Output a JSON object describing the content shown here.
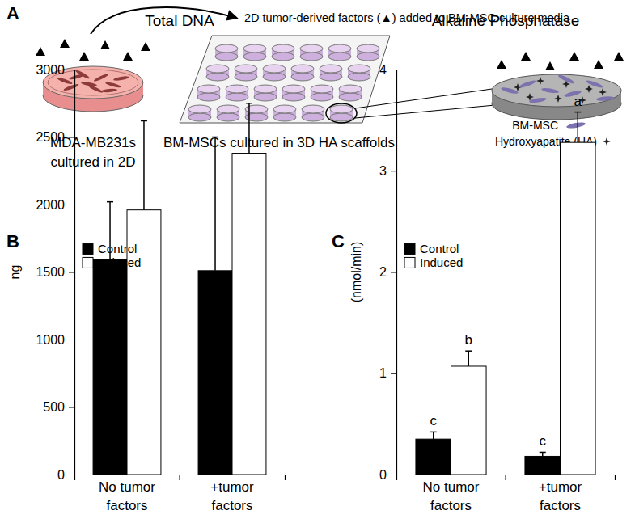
{
  "diagram": {
    "panel_label": "A",
    "arrow_text": "2D tumor-derived factors (▲) added to BM-MSC culture media",
    "left_caption": "MDA-MB231s\ncultured in 2D",
    "center_caption": "BM-MSCs cultured in 3D HA scaffolds",
    "key": [
      "BM-MSC",
      "Hydroxyapatite (HA)"
    ]
  },
  "chart_data": [
    {
      "type": "bar",
      "panel_label": "B",
      "title": "Total DNA",
      "y_label": "ng",
      "categories": [
        "No tumor\nfactors",
        "+tumor\nfactors"
      ],
      "series": [
        {
          "name": "Control",
          "color": "#000000",
          "values": [
            1590,
            1510
          ],
          "errors": [
            430,
            990
          ]
        },
        {
          "name": "Induced",
          "color": "#ffffff",
          "values": [
            1960,
            2380
          ],
          "errors": [
            660,
            370
          ]
        }
      ],
      "ylim": [
        0,
        3000
      ],
      "yticks": [
        0,
        500,
        1000,
        1500,
        2000,
        2500,
        3000
      ],
      "legend": "upper left"
    },
    {
      "type": "bar",
      "panel_label": "C",
      "title": "Alkaline Phosphatase",
      "y_label": "(nmol/min)",
      "categories": [
        "No tumor\nfactors",
        "+tumor\nfactors"
      ],
      "series": [
        {
          "name": "Control",
          "color": "#000000",
          "values": [
            0.35,
            0.18
          ],
          "errors": [
            0.07,
            0.04
          ],
          "annotations": [
            "c",
            "c"
          ]
        },
        {
          "name": "Induced",
          "color": "#ffffff",
          "values": [
            1.07,
            3.28
          ],
          "errors": [
            0.15,
            0.3
          ],
          "annotations": [
            "b",
            "a"
          ]
        }
      ],
      "ylim": [
        0,
        4
      ],
      "yticks": [
        0,
        1,
        2,
        3,
        4
      ],
      "legend": "upper left"
    }
  ]
}
